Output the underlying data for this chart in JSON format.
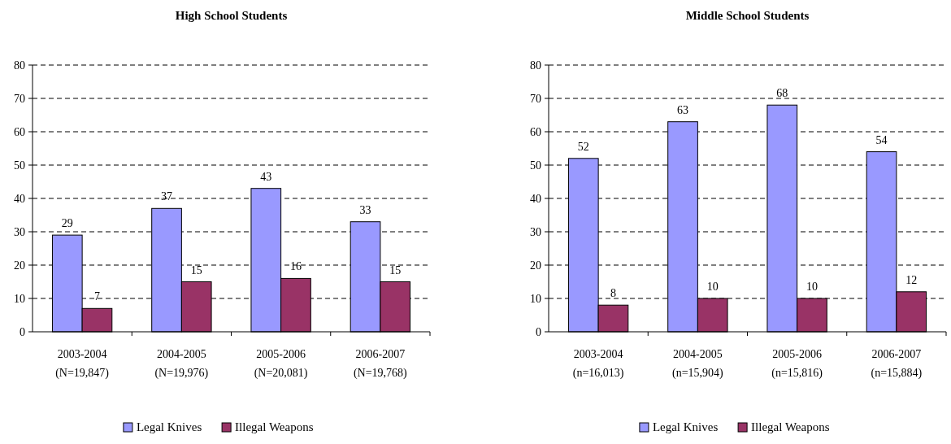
{
  "chart_data": [
    {
      "type": "bar",
      "title": "High School Students",
      "categories": [
        "2003-2004\n(N=19,847)",
        "2004-2005\n(N=19,976)",
        "2005-2006\n(N=20,081)",
        "2006-2007\n(N=19,768)"
      ],
      "series": [
        {
          "name": "Legal Knives",
          "color": "#9999ff",
          "values": [
            29,
            37,
            43,
            33
          ]
        },
        {
          "name": "Illegal Weapons",
          "color": "#993366",
          "values": [
            7,
            15,
            16,
            15
          ]
        }
      ],
      "ylim": [
        0,
        80
      ],
      "yticks": [
        0,
        10,
        20,
        30,
        40,
        50,
        60,
        70,
        80
      ],
      "grid": "y",
      "legend": "bottom",
      "data_labels": true
    },
    {
      "type": "bar",
      "title": "Middle School Students",
      "categories": [
        "2003-2004\n(n=16,013)",
        "2004-2005\n(n=15,904)",
        "2005-2006\n(n=15,816)",
        "2006-2007\n(n=15,884)"
      ],
      "series": [
        {
          "name": "Legal Knives",
          "color": "#9999ff",
          "values": [
            52,
            63,
            68,
            54
          ]
        },
        {
          "name": "Illegal Weapons",
          "color": "#993366",
          "values": [
            8,
            10,
            10,
            12
          ]
        }
      ],
      "ylim": [
        0,
        80
      ],
      "yticks": [
        0,
        10,
        20,
        30,
        40,
        50,
        60,
        70,
        80
      ],
      "grid": "y",
      "legend": "bottom",
      "data_labels": true
    }
  ]
}
